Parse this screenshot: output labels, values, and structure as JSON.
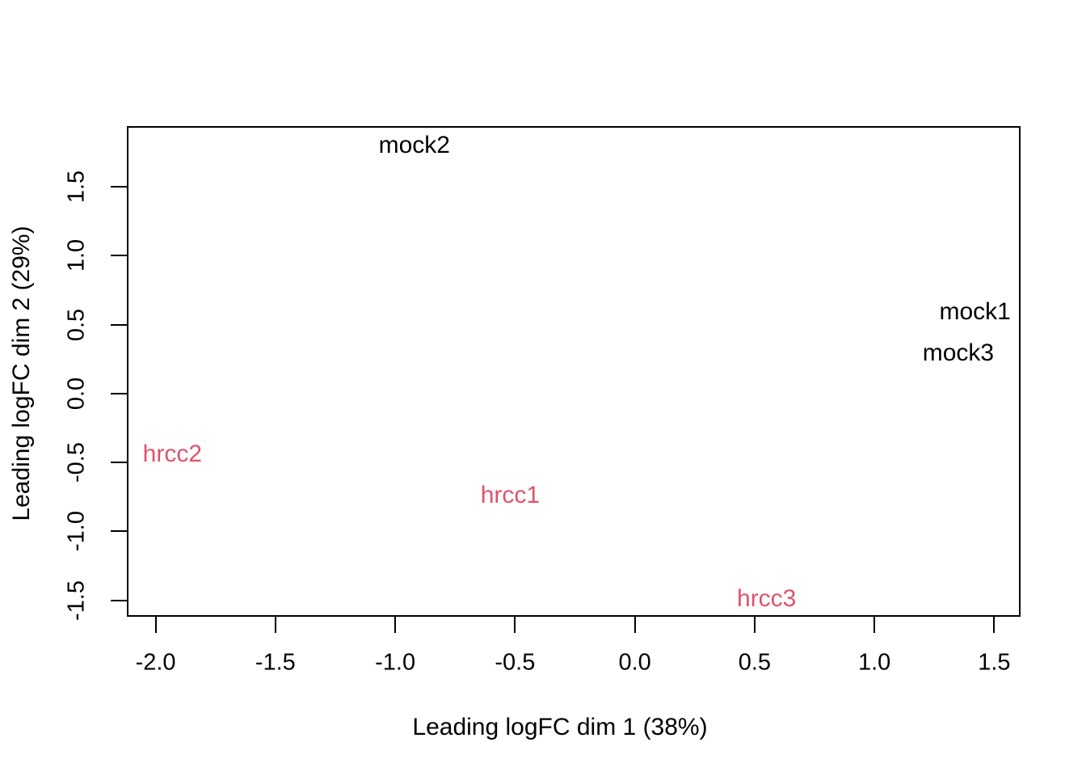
{
  "chart_data": {
    "type": "scatter",
    "variant": "mds-labeled-text-points",
    "title": "",
    "xlabel": "Leading logFC dim 1 (38%)",
    "ylabel": "Leading logFC dim 2 (29%)",
    "xlim": [
      -2.12,
      1.61
    ],
    "ylim": [
      -1.62,
      1.94
    ],
    "xticks": [
      -2.0,
      -1.5,
      -1.0,
      -0.5,
      0.0,
      0.5,
      1.0,
      1.5
    ],
    "xtick_labels": [
      "-2.0",
      "-1.5",
      "-1.0",
      "-0.5",
      "0.0",
      "0.5",
      "1.0",
      "1.5"
    ],
    "yticks": [
      -1.5,
      -1.0,
      -0.5,
      0.0,
      0.5,
      1.0,
      1.5
    ],
    "ytick_labels": [
      "-1.5",
      "-1.0",
      "-0.5",
      "0.0",
      "0.5",
      "1.0",
      "1.5"
    ],
    "grid": false,
    "legend": "none",
    "colors": {
      "mock_group": "#000000",
      "hrcc_group": "#DF536B",
      "axis": "#000000",
      "background": "#FFFFFF"
    },
    "points": [
      {
        "label": "mock2",
        "x": -0.92,
        "y": 1.8,
        "group": "mock",
        "color": "#000000"
      },
      {
        "label": "mock1",
        "x": 1.42,
        "y": 0.59,
        "group": "mock",
        "color": "#000000"
      },
      {
        "label": "mock3",
        "x": 1.35,
        "y": 0.29,
        "group": "mock",
        "color": "#000000"
      },
      {
        "label": "hrcc2",
        "x": -1.93,
        "y": -0.44,
        "group": "hrcc",
        "color": "#DF536B"
      },
      {
        "label": "hrcc1",
        "x": -0.52,
        "y": -0.74,
        "group": "hrcc",
        "color": "#DF536B"
      },
      {
        "label": "hrcc3",
        "x": 0.55,
        "y": -1.49,
        "group": "hrcc",
        "color": "#DF536B"
      }
    ]
  }
}
